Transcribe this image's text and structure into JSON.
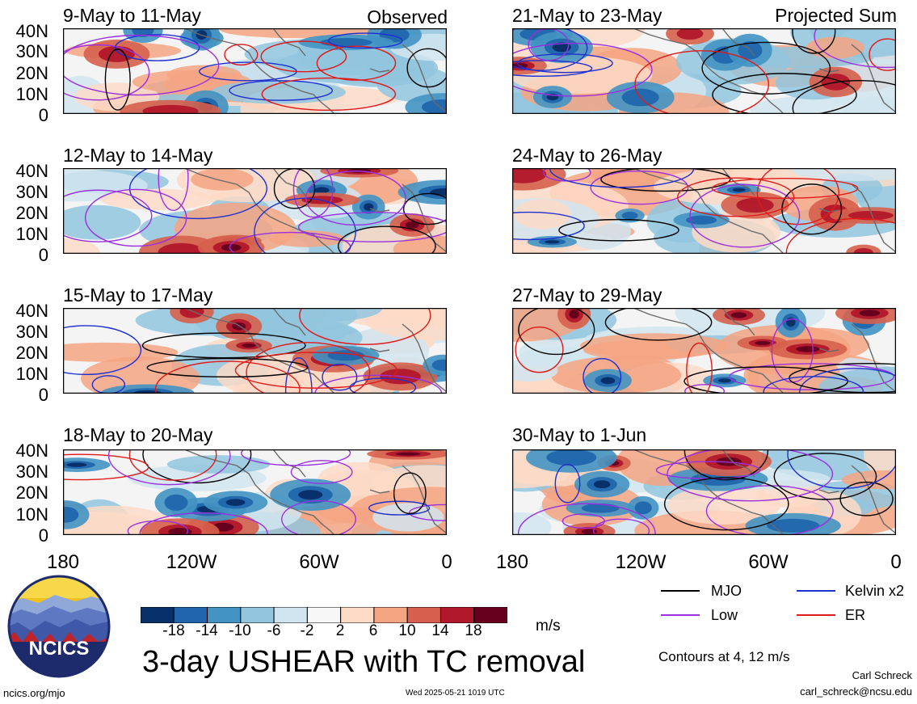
{
  "tags": {
    "observed": "Observed",
    "projected": "Projected Sum"
  },
  "panels": {
    "left": [
      {
        "period": "9-May to 11-May"
      },
      {
        "period": "12-May to 14-May"
      },
      {
        "period": "15-May to 17-May"
      },
      {
        "period": "18-May to 20-May"
      }
    ],
    "right": [
      {
        "period": "21-May to 23-May"
      },
      {
        "period": "24-May to 26-May"
      },
      {
        "period": "27-May to 29-May"
      },
      {
        "period": "30-May to 1-Jun"
      }
    ]
  },
  "latitude_ticks": [
    "40N",
    "30N",
    "20N",
    "10N",
    "0"
  ],
  "longitude_ticks": [
    "180",
    "120W",
    "60W",
    "0"
  ],
  "colorbar": {
    "ticks": [
      "-18",
      "-14",
      "-10",
      "-6",
      "-2",
      "2",
      "6",
      "10",
      "14",
      "18"
    ],
    "colors": [
      "#08306b",
      "#2166ac",
      "#4393c3",
      "#92c5de",
      "#d1e5f0",
      "#f7f7f7",
      "#fddbc7",
      "#f4a582",
      "#d6604d",
      "#b2182b",
      "#67001f"
    ],
    "units": "m/s"
  },
  "legend": {
    "mjo": {
      "label": "MJO",
      "color": "#000000"
    },
    "kelvin": {
      "label": "Kelvin x2",
      "color": "#1f2fd1"
    },
    "low": {
      "label": "Low",
      "color": "#9b30e0"
    },
    "er": {
      "label": "ER",
      "color": "#e01a1a"
    }
  },
  "title": "3-day USHEAR with TC removal",
  "contours_note": "Contours at 4, 12 m/s",
  "author": {
    "name": "Carl Schreck",
    "email": "carl_schreck@ncsu.edu"
  },
  "website": "ncics.org/mjo",
  "timestamp": "Wed 2025-05-21 1019 UTC",
  "logo_text": "NCICS"
}
